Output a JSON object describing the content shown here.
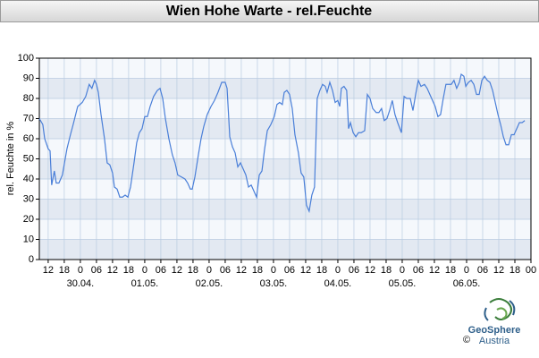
{
  "chart_data": {
    "type": "line",
    "title": "Wien Hohe Warte - rel.Feuchte",
    "ylabel": "rel. Feuchte in %",
    "color": "#4a7fd8",
    "grid": true,
    "ylim": [
      0,
      100
    ],
    "yticks": [
      0,
      10,
      20,
      30,
      40,
      50,
      60,
      70,
      80,
      90,
      100
    ],
    "xlim": [
      8.7,
      192
    ],
    "xticks": [
      12,
      18,
      {
        "value": 24,
        "label": "0"
      },
      {
        "value": 30,
        "label": "06"
      },
      {
        "value": 36,
        "label": "12"
      },
      {
        "value": 42,
        "label": "18"
      },
      {
        "value": 48,
        "label": "0"
      },
      {
        "value": 54,
        "label": "06"
      },
      {
        "value": 60,
        "label": "12"
      },
      {
        "value": 66,
        "label": "18"
      },
      {
        "value": 72,
        "label": "0"
      },
      {
        "value": 78,
        "label": "06"
      },
      {
        "value": 84,
        "label": "12"
      },
      {
        "value": 90,
        "label": "18"
      },
      {
        "value": 96,
        "label": "0"
      },
      {
        "value": 102,
        "label": "06"
      },
      {
        "value": 108,
        "label": "12"
      },
      {
        "value": 114,
        "label": "18"
      },
      {
        "value": 120,
        "label": "0"
      },
      {
        "value": 126,
        "label": "06"
      },
      {
        "value": 132,
        "label": "12"
      },
      {
        "value": 138,
        "label": "18"
      },
      {
        "value": 144,
        "label": "0"
      },
      {
        "value": 150,
        "label": "06"
      },
      {
        "value": 156,
        "label": "12"
      },
      {
        "value": 162,
        "label": "18"
      },
      {
        "value": 168,
        "label": "0"
      },
      {
        "value": 174,
        "label": "06"
      },
      {
        "value": 180,
        "label": "12"
      },
      {
        "value": 186,
        "label": "18"
      },
      {
        "value": 192,
        "label": "00"
      }
    ],
    "date_labels": [
      {
        "value": 24,
        "label": "30.04."
      },
      {
        "value": 48,
        "label": "01.05."
      },
      {
        "value": 72,
        "label": "02.05."
      },
      {
        "value": 96,
        "label": "03.05."
      },
      {
        "value": 120,
        "label": "04.05."
      },
      {
        "value": 144,
        "label": "05.05."
      },
      {
        "value": 168,
        "label": "06.05."
      }
    ],
    "x": [
      8.7,
      10,
      10.7,
      12,
      12.7,
      13.3,
      14.3,
      15,
      16,
      17.3,
      19,
      20.3,
      21.3,
      23,
      24.7,
      26,
      27.3,
      28.3,
      29.3,
      30,
      30.7,
      31.7,
      33,
      34,
      35,
      36,
      36.7,
      37.7,
      38.7,
      39.7,
      40.7,
      41.7,
      42.7,
      44,
      45,
      46,
      47,
      48,
      49,
      50,
      51.3,
      52.7,
      53.7,
      54.7,
      55.7,
      57,
      58.3,
      59.3,
      60.3,
      61.7,
      63,
      64,
      65,
      65.7,
      66.7,
      68,
      69,
      70,
      71.3,
      72.7,
      74,
      75.3,
      76.7,
      78,
      78.7,
      79.7,
      80.7,
      81.7,
      82.7,
      83.7,
      84.7,
      85.7,
      86.7,
      87.7,
      88.7,
      89.7,
      90.7,
      91.7,
      92.7,
      93.7,
      95,
      96.3,
      97.3,
      98.3,
      99.3,
      100,
      101,
      102,
      103,
      104,
      105.3,
      106.3,
      107.3,
      108.3,
      109.3,
      110.3,
      111.3,
      112.3,
      113.3,
      114.3,
      115.3,
      116,
      117,
      118,
      119,
      120,
      120.7,
      121.3,
      122.3,
      123.3,
      124,
      124.7,
      125.7,
      126.7,
      127.7,
      128.7,
      130,
      131,
      132,
      133,
      134.3,
      135.3,
      136.3,
      137.3,
      138.3,
      139.3,
      140.3,
      141.3,
      142.3,
      143.7,
      144.7,
      145.7,
      147,
      148,
      149,
      150,
      151,
      152.3,
      153.3,
      154.3,
      155.3,
      156.3,
      157.3,
      158.3,
      159.3,
      160.3,
      161.3,
      162.3,
      163.3,
      164.3,
      165.3,
      166,
      167,
      167.7,
      168.7,
      169.7,
      170.7,
      171.7,
      172.7,
      173.7,
      174.7,
      175.7,
      176.7,
      177.7,
      178.7,
      179.7,
      180.7,
      181.7,
      182.7,
      183.7,
      184.7,
      185.7,
      186.7,
      187.7,
      188.7,
      189.7
    ],
    "values": [
      70,
      67,
      60,
      55,
      54,
      37,
      44,
      38,
      38,
      42,
      55,
      62,
      67,
      76,
      78,
      81,
      87,
      85,
      89,
      87,
      83,
      72,
      60,
      48,
      47,
      43,
      36,
      35,
      31,
      31,
      32,
      31,
      36,
      48,
      58,
      63,
      65,
      71,
      71,
      76,
      81,
      84,
      85,
      80,
      70,
      60,
      52,
      48,
      42,
      41,
      40,
      38,
      35,
      35,
      41,
      52,
      60,
      66,
      72,
      76,
      79,
      83,
      88,
      88,
      85,
      61,
      56,
      53,
      46,
      48,
      45,
      42,
      36,
      37,
      34,
      31,
      42,
      44,
      55,
      64,
      67,
      71,
      77,
      78,
      77,
      83,
      84,
      82,
      75,
      62,
      53,
      43,
      41,
      27,
      24,
      32,
      36,
      80,
      84,
      87,
      86,
      83,
      88,
      84,
      78,
      79,
      76,
      85,
      86,
      84,
      65,
      68,
      63,
      61,
      63,
      63,
      64,
      82,
      80,
      75,
      73,
      73,
      75,
      69,
      70,
      74,
      79,
      72,
      68,
      63,
      81,
      80,
      80,
      74,
      82,
      89,
      86,
      87,
      85,
      82,
      79,
      76,
      71,
      72,
      80,
      87,
      87,
      87,
      89,
      85,
      88,
      92,
      91,
      86,
      88,
      89,
      87,
      82,
      82,
      89,
      91,
      89,
      88,
      84,
      78,
      72,
      67,
      61,
      57,
      57,
      62,
      62,
      65,
      68,
      68,
      69
    ]
  },
  "logo": {
    "name": "GeoSphere",
    "sub": "Austria",
    "copyright": "©"
  }
}
